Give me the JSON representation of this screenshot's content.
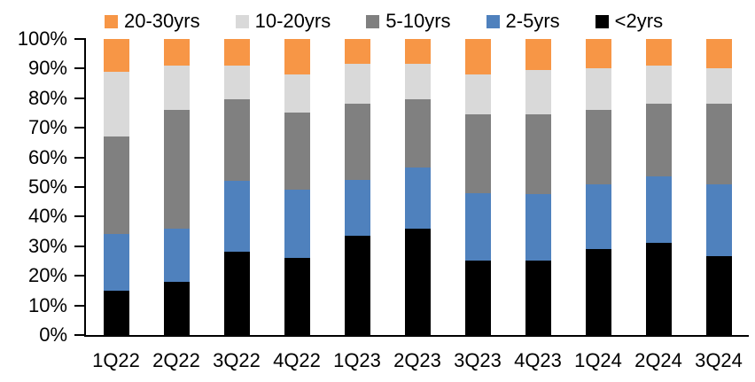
{
  "chart_data": {
    "type": "bar",
    "subtype": "stacked-100-percent",
    "title": "",
    "xlabel": "",
    "ylabel": "",
    "grid": false,
    "categories": [
      "1Q22",
      "2Q22",
      "3Q22",
      "4Q22",
      "1Q23",
      "2Q23",
      "3Q23",
      "4Q23",
      "1Q24",
      "2Q24",
      "3Q24"
    ],
    "series": [
      {
        "name": "<2yrs",
        "color": "#000000",
        "values": [
          15,
          18,
          28,
          26,
          33.5,
          36,
          25,
          25,
          29,
          31,
          26.5
        ]
      },
      {
        "name": "2-5yrs",
        "color": "#4F81BD",
        "values": [
          19,
          18,
          24,
          23,
          19,
          20.5,
          23,
          22.5,
          22,
          22.5,
          24.5
        ]
      },
      {
        "name": "5-10yrs",
        "color": "#808080",
        "values": [
          33,
          40,
          27.5,
          26,
          25.5,
          23,
          26.5,
          27,
          25,
          24.5,
          27
        ]
      },
      {
        "name": "10-20yrs",
        "color": "#D9D9D9",
        "values": [
          22,
          15,
          11.5,
          13,
          13.5,
          12,
          13.5,
          15,
          14,
          13,
          12
        ]
      },
      {
        "name": "20-30yrs",
        "color": "#F79646",
        "values": [
          11,
          9,
          9,
          12,
          8.5,
          8.5,
          12,
          10.5,
          10,
          9,
          10
        ]
      }
    ],
    "legend": {
      "position": "top",
      "order": [
        "20-30yrs",
        "10-20yrs",
        "5-10yrs",
        "2-5yrs",
        "<2yrs"
      ]
    },
    "y_axis": {
      "min": 0,
      "max": 100,
      "tick_step": 10,
      "unit": "%",
      "tick_labels": [
        "100%",
        "90%",
        "80%",
        "70%",
        "60%",
        "50%",
        "40%",
        "30%",
        "20%",
        "10%",
        "0%"
      ]
    }
  }
}
